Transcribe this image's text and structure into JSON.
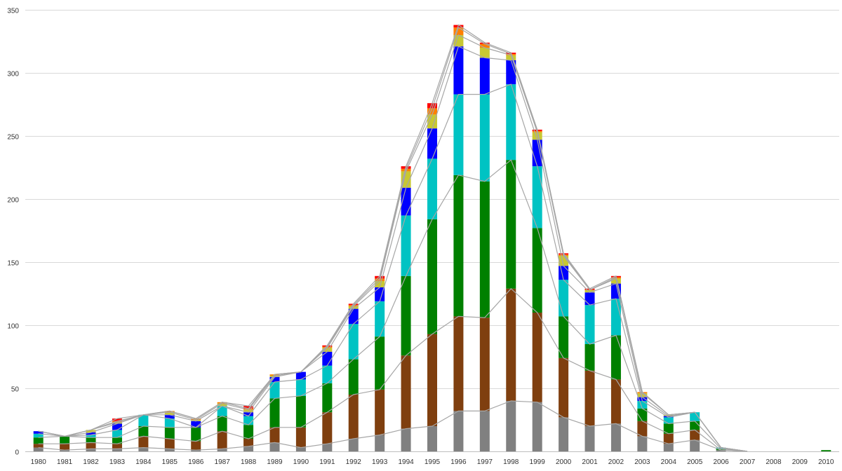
{
  "chart_data": {
    "type": "bar",
    "stacked": true,
    "series_link_lines": true,
    "grid": true,
    "title": "",
    "xlabel": "",
    "ylabel": "",
    "ylim": [
      0,
      350
    ],
    "y_ticks": [
      "0",
      "50",
      "100",
      "150",
      "200",
      "250",
      "300",
      "350"
    ],
    "categories": [
      "1980",
      "1981",
      "1982",
      "1983",
      "1984",
      "1985",
      "1986",
      "1987",
      "1988",
      "1989",
      "1990",
      "1991",
      "1992",
      "1993",
      "1994",
      "1995",
      "1996",
      "1997",
      "1998",
      "1999",
      "2000",
      "2001",
      "2002",
      "2003",
      "2004",
      "2005",
      "2006",
      "2007",
      "2008",
      "2009",
      "2010"
    ],
    "series": [
      {
        "color": "#808080",
        "values": [
          3,
          1,
          2,
          2,
          3,
          2,
          1,
          2,
          4,
          7,
          3,
          6,
          10,
          13,
          18,
          20,
          32,
          32,
          40,
          39,
          27,
          20,
          22,
          12,
          6,
          9,
          1,
          0,
          0,
          0,
          0
        ]
      },
      {
        "color": "#7f3f0f",
        "values": [
          3,
          5,
          5,
          4,
          9,
          8,
          7,
          14,
          6,
          12,
          16,
          25,
          35,
          36,
          58,
          73,
          75,
          74,
          89,
          71,
          47,
          44,
          35,
          12,
          8,
          8,
          0,
          0,
          0,
          0,
          0
        ]
      },
      {
        "color": "#008000",
        "values": [
          5,
          6,
          4,
          5,
          8,
          9,
          11,
          12,
          11,
          23,
          25,
          23,
          28,
          42,
          63,
          91,
          112,
          108,
          102,
          67,
          33,
          21,
          35,
          10,
          8,
          7,
          1,
          0,
          0,
          0,
          1
        ]
      },
      {
        "color": "#00c3c3",
        "values": [
          3,
          0,
          2,
          6,
          9,
          7,
          0,
          8,
          7,
          13,
          13,
          14,
          28,
          28,
          48,
          48,
          64,
          69,
          60,
          49,
          29,
          31,
          29,
          6,
          5,
          7,
          1,
          0,
          0,
          0,
          0
        ]
      },
      {
        "color": "#0000ff",
        "values": [
          2,
          0,
          2,
          5,
          0,
          3,
          5,
          0,
          3,
          4,
          6,
          11,
          12,
          11,
          22,
          24,
          38,
          29,
          19,
          21,
          11,
          10,
          12,
          3,
          1,
          0,
          0,
          0,
          0,
          0,
          0
        ]
      },
      {
        "color": "#c8c832",
        "values": [
          0,
          0,
          2,
          1,
          0,
          2,
          1,
          2,
          2,
          1,
          0,
          3,
          2,
          5,
          13,
          11,
          9,
          8,
          4,
          6,
          8,
          2,
          4,
          3,
          1,
          0,
          0,
          0,
          0,
          0,
          0
        ]
      },
      {
        "color": "#ff8000",
        "values": [
          0,
          0,
          0,
          1,
          0,
          1,
          1,
          1,
          1,
          1,
          0,
          1,
          1,
          2,
          2,
          5,
          6,
          3,
          1,
          1,
          1,
          0,
          1,
          1,
          0,
          0,
          0,
          0,
          0,
          0,
          0
        ]
      },
      {
        "color": "#ff0000",
        "values": [
          0,
          0,
          0,
          2,
          0,
          0,
          0,
          0,
          2,
          0,
          0,
          1,
          1,
          2,
          2,
          4,
          2,
          1,
          1,
          1,
          1,
          1,
          1,
          0,
          0,
          0,
          0,
          0,
          0,
          0,
          0
        ]
      }
    ]
  }
}
